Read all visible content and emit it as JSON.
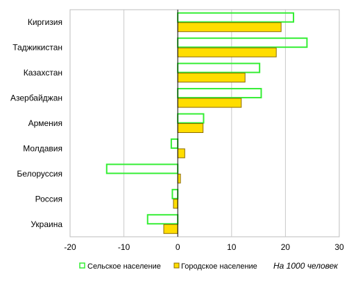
{
  "chart_data": {
    "type": "bar",
    "orientation": "horizontal",
    "categories": [
      "Киргизия",
      "Таджикистан",
      "Казахстан",
      "Азербайджан",
      "Армения",
      "Молдавия",
      "Белоруссия",
      "Россия",
      "Украина"
    ],
    "series": [
      {
        "name": "Сельское население",
        "values": [
          21.5,
          24.0,
          15.2,
          15.5,
          4.8,
          -1.2,
          -13.2,
          -1.0,
          -5.6
        ],
        "color": "#33ee33",
        "fill": "none"
      },
      {
        "name": "Городское население",
        "values": [
          19.2,
          18.3,
          12.5,
          11.8,
          4.7,
          1.3,
          0.5,
          -0.8,
          -2.6
        ],
        "color": "#ffdd00",
        "stroke": "#8a6a00"
      }
    ],
    "xticks": [
      "-20",
      "-10",
      "0",
      "10",
      "20",
      "30"
    ],
    "xlim": [
      -20,
      30
    ],
    "grid": true,
    "legend_position": "bottom",
    "annotation": "На 1000 человек",
    "title": "",
    "xlabel": "",
    "ylabel": ""
  }
}
